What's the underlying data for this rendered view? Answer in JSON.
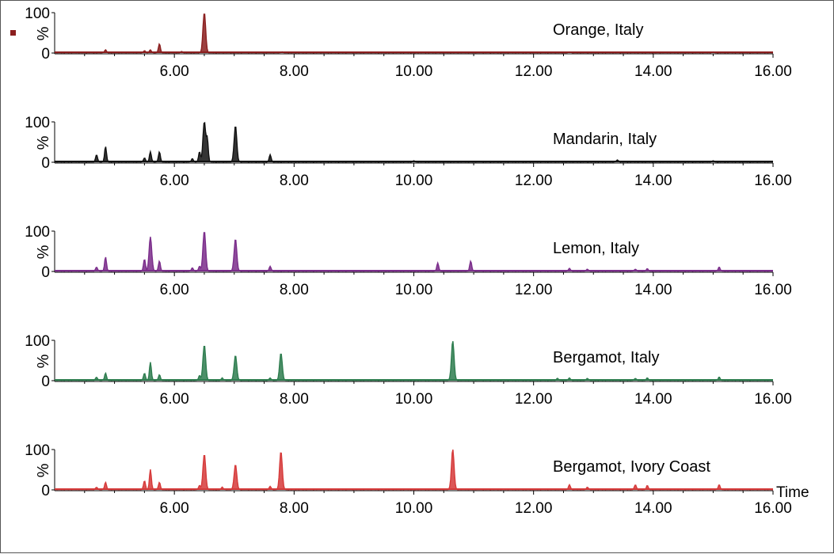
{
  "chart_data": [
    {
      "type": "line",
      "title": "Orange, Italy",
      "color": "#8b1f1f",
      "ylabel": "%",
      "xlim": [
        4.0,
        16.0
      ],
      "ylim": [
        0,
        100
      ],
      "y_ticks": [
        "100",
        "0"
      ],
      "x_ticks": [
        "6.00",
        "8.00",
        "10.00",
        "12.00",
        "14.00",
        "16.00"
      ],
      "peaks": [
        {
          "x": 4.85,
          "y": 7
        },
        {
          "x": 5.5,
          "y": 5
        },
        {
          "x": 5.6,
          "y": 7
        },
        {
          "x": 5.75,
          "y": 22
        },
        {
          "x": 6.12,
          "y": 3
        },
        {
          "x": 6.5,
          "y": 100
        },
        {
          "x": 7.8,
          "y": 2
        },
        {
          "x": 12.6,
          "y": 2
        },
        {
          "x": 15.0,
          "y": 2
        }
      ]
    },
    {
      "type": "line",
      "title": "Mandarin, Italy",
      "color": "#111111",
      "ylabel": "%",
      "xlim": [
        4.0,
        16.0
      ],
      "ylim": [
        0,
        100
      ],
      "y_ticks": [
        "100",
        "0"
      ],
      "x_ticks": [
        "6.00",
        "8.00",
        "10.00",
        "12.00",
        "14.00",
        "16.00"
      ],
      "peaks": [
        {
          "x": 4.7,
          "y": 18
        },
        {
          "x": 4.85,
          "y": 38
        },
        {
          "x": 5.5,
          "y": 10
        },
        {
          "x": 5.6,
          "y": 25
        },
        {
          "x": 5.75,
          "y": 25
        },
        {
          "x": 6.3,
          "y": 8
        },
        {
          "x": 6.42,
          "y": 25
        },
        {
          "x": 6.5,
          "y": 100
        },
        {
          "x": 6.55,
          "y": 55
        },
        {
          "x": 7.02,
          "y": 90
        },
        {
          "x": 7.6,
          "y": 18
        },
        {
          "x": 10.0,
          "y": 3
        },
        {
          "x": 13.4,
          "y": 5
        },
        {
          "x": 15.0,
          "y": 3
        }
      ]
    },
    {
      "type": "line",
      "title": "Lemon, Italy",
      "color": "#7b2d8b",
      "ylabel": "%",
      "xlim": [
        4.0,
        16.0
      ],
      "ylim": [
        0,
        100
      ],
      "y_ticks": [
        "100",
        "0"
      ],
      "x_ticks": [
        "6.00",
        "8.00",
        "10.00",
        "12.00",
        "14.00",
        "16.00"
      ],
      "peaks": [
        {
          "x": 4.7,
          "y": 10
        },
        {
          "x": 4.85,
          "y": 35
        },
        {
          "x": 5.5,
          "y": 30
        },
        {
          "x": 5.6,
          "y": 85
        },
        {
          "x": 5.75,
          "y": 25
        },
        {
          "x": 6.3,
          "y": 8
        },
        {
          "x": 6.42,
          "y": 12
        },
        {
          "x": 6.5,
          "y": 100
        },
        {
          "x": 7.02,
          "y": 80
        },
        {
          "x": 7.6,
          "y": 12
        },
        {
          "x": 10.4,
          "y": 20
        },
        {
          "x": 10.95,
          "y": 25
        },
        {
          "x": 12.6,
          "y": 7
        },
        {
          "x": 12.9,
          "y": 5
        },
        {
          "x": 13.7,
          "y": 5
        },
        {
          "x": 13.9,
          "y": 6
        },
        {
          "x": 15.1,
          "y": 10
        }
      ]
    },
    {
      "type": "line",
      "title": "Bergamot, Italy",
      "color": "#2e7d4f",
      "ylabel": "%",
      "xlim": [
        4.0,
        16.0
      ],
      "ylim": [
        0,
        100
      ],
      "y_ticks": [
        "100",
        "0"
      ],
      "x_ticks": [
        "6.00",
        "8.00",
        "10.00",
        "12.00",
        "14.00",
        "16.00"
      ],
      "peaks": [
        {
          "x": 4.7,
          "y": 8
        },
        {
          "x": 4.85,
          "y": 18
        },
        {
          "x": 5.5,
          "y": 18
        },
        {
          "x": 5.6,
          "y": 45
        },
        {
          "x": 5.75,
          "y": 14
        },
        {
          "x": 6.42,
          "y": 12
        },
        {
          "x": 6.5,
          "y": 88
        },
        {
          "x": 6.8,
          "y": 6
        },
        {
          "x": 7.02,
          "y": 62
        },
        {
          "x": 7.6,
          "y": 6
        },
        {
          "x": 7.78,
          "y": 68
        },
        {
          "x": 10.65,
          "y": 98
        },
        {
          "x": 12.4,
          "y": 5
        },
        {
          "x": 12.6,
          "y": 6
        },
        {
          "x": 12.9,
          "y": 5
        },
        {
          "x": 13.7,
          "y": 5
        },
        {
          "x": 13.9,
          "y": 6
        },
        {
          "x": 15.1,
          "y": 8
        }
      ]
    },
    {
      "type": "line",
      "title": "Bergamot, Ivory Coast",
      "color": "#d63a3a",
      "ylabel": "%",
      "xlabel": "Time",
      "xlim": [
        4.0,
        16.0
      ],
      "ylim": [
        0,
        100
      ],
      "y_ticks": [
        "100",
        "0"
      ],
      "x_ticks": [
        "6.00",
        "8.00",
        "10.00",
        "12.00",
        "14.00",
        "16.00"
      ],
      "peaks": [
        {
          "x": 4.7,
          "y": 6
        },
        {
          "x": 4.85,
          "y": 18
        },
        {
          "x": 5.5,
          "y": 22
        },
        {
          "x": 5.6,
          "y": 50
        },
        {
          "x": 5.75,
          "y": 18
        },
        {
          "x": 6.42,
          "y": 10
        },
        {
          "x": 6.5,
          "y": 88
        },
        {
          "x": 6.8,
          "y": 6
        },
        {
          "x": 7.02,
          "y": 62
        },
        {
          "x": 7.6,
          "y": 8
        },
        {
          "x": 7.78,
          "y": 95
        },
        {
          "x": 10.65,
          "y": 100
        },
        {
          "x": 12.6,
          "y": 12
        },
        {
          "x": 12.9,
          "y": 6
        },
        {
          "x": 13.7,
          "y": 12
        },
        {
          "x": 13.9,
          "y": 10
        },
        {
          "x": 15.1,
          "y": 12
        }
      ]
    }
  ]
}
